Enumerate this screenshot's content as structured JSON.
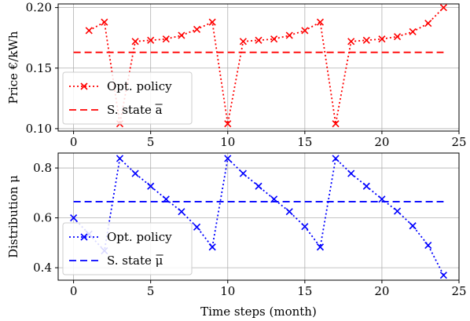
{
  "chart_data": [
    {
      "type": "line",
      "xlabel": "",
      "ylabel": "Price €/kWh",
      "xlim": [
        -1,
        25
      ],
      "ylim": [
        0.098,
        0.203
      ],
      "xticks": [
        "0",
        "5",
        "10",
        "15",
        "20",
        "25"
      ],
      "yticks": [
        "0.10",
        "0.15",
        "0.20"
      ],
      "grid": true,
      "legend_position": "lower-left",
      "series": [
        {
          "name": "Opt. policy",
          "color": "#ff0000",
          "marker": "x",
          "linestyle": "dotted",
          "x": [
            1,
            2,
            3,
            4,
            5,
            6,
            7,
            8,
            9,
            10,
            11,
            12,
            13,
            14,
            15,
            16,
            17,
            18,
            19,
            20,
            21,
            22,
            23,
            24
          ],
          "values": [
            0.181,
            0.188,
            0.104,
            0.172,
            0.173,
            0.174,
            0.177,
            0.182,
            0.188,
            0.104,
            0.172,
            0.173,
            0.174,
            0.177,
            0.181,
            0.188,
            0.104,
            0.172,
            0.173,
            0.174,
            0.176,
            0.18,
            0.187,
            0.2
          ]
        },
        {
          "name": "S. state a",
          "overline": "a",
          "color": "#ff0000",
          "linestyle": "dashed",
          "x": [
            0,
            24
          ],
          "values": [
            0.163,
            0.163
          ]
        }
      ]
    },
    {
      "type": "line",
      "xlabel": "Time steps (month)",
      "ylabel": "Distribution μ",
      "xlim": [
        -1,
        25
      ],
      "ylim": [
        0.35,
        0.86
      ],
      "xticks": [
        "0",
        "5",
        "10",
        "15",
        "20",
        "25"
      ],
      "yticks": [
        "0.4",
        "0.6",
        "0.8"
      ],
      "grid": true,
      "legend_position": "lower-left",
      "series": [
        {
          "name": "Opt. policy",
          "color": "#0000ff",
          "marker": "x",
          "linestyle": "dotted",
          "x": [
            0,
            1,
            2,
            3,
            4,
            5,
            6,
            7,
            8,
            9,
            10,
            11,
            12,
            13,
            14,
            15,
            16,
            17,
            18,
            19,
            20,
            21,
            22,
            23,
            24
          ],
          "values": [
            0.6,
            0.535,
            0.468,
            0.838,
            0.778,
            0.727,
            0.675,
            0.625,
            0.563,
            0.483,
            0.838,
            0.778,
            0.727,
            0.675,
            0.625,
            0.565,
            0.483,
            0.838,
            0.778,
            0.727,
            0.675,
            0.627,
            0.568,
            0.49,
            0.37
          ]
        },
        {
          "name": "S. state μ",
          "overline": "μ",
          "color": "#0000ff",
          "linestyle": "dashed",
          "x": [
            0,
            24
          ],
          "values": [
            0.665,
            0.665
          ]
        }
      ]
    }
  ]
}
